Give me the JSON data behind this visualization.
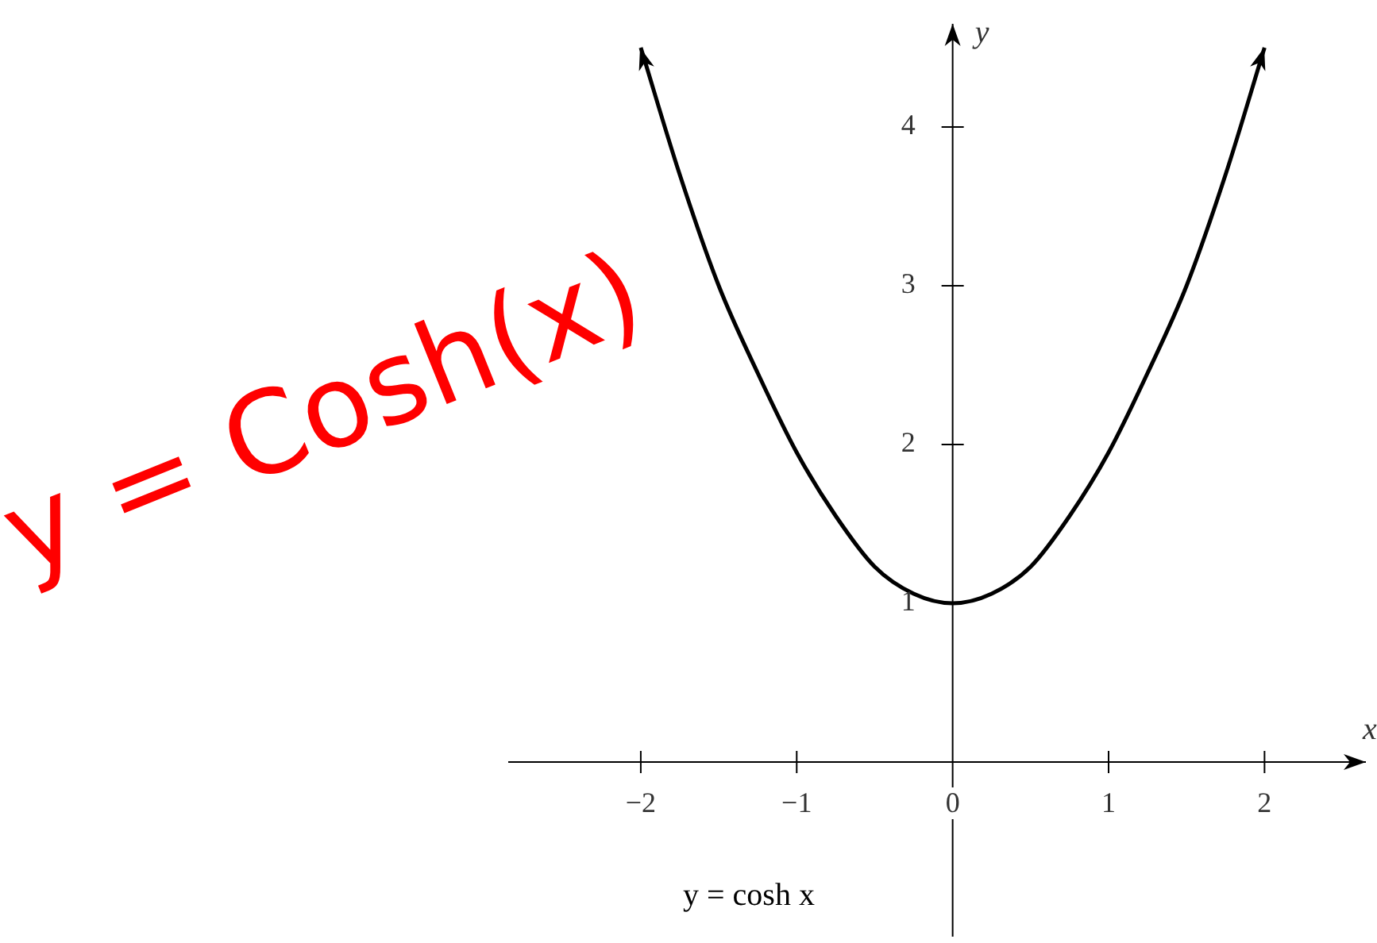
{
  "chart_data": {
    "type": "line",
    "xlabel": "x",
    "ylabel": "y",
    "x": [
      -2,
      -1.75,
      -1.5,
      -1.25,
      -1,
      -0.75,
      -0.5,
      -0.25,
      0,
      0.25,
      0.5,
      0.75,
      1,
      1.25,
      1.5,
      1.75,
      2
    ],
    "series": [
      {
        "color": "#000000",
        "values": [
          4.5,
          3.7,
          3.0,
          2.45,
          1.95,
          1.55,
          1.23,
          1.06,
          1.0,
          1.06,
          1.23,
          1.55,
          1.95,
          2.45,
          3.0,
          3.7,
          4.5
        ]
      }
    ],
    "xlim": [
      -2.85,
      2.65
    ],
    "ylim": [
      -1.1,
      4.65
    ],
    "xticks": [
      {
        "value": -2,
        "label": "−2"
      },
      {
        "value": -1,
        "label": "−1"
      },
      {
        "value": 0,
        "label": "0"
      },
      {
        "value": 1,
        "label": "1"
      },
      {
        "value": 2,
        "label": "2"
      }
    ],
    "yticks": [
      1,
      2,
      3,
      4
    ],
    "legend": false,
    "marker": "none",
    "line_style": "solid",
    "annotations": [
      "y = cosh x",
      "y = Cosh(x)"
    ]
  }
}
